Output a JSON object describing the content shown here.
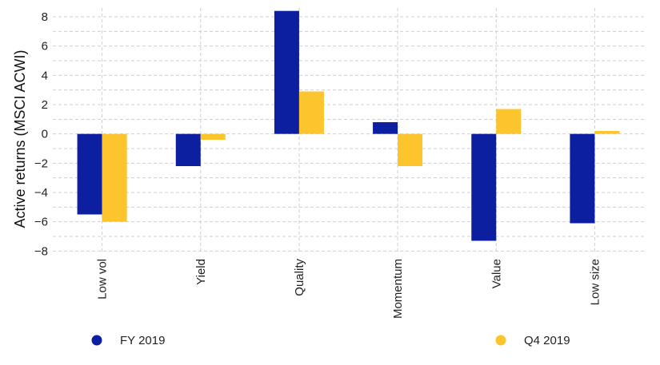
{
  "chart_data": {
    "type": "bar",
    "categories": [
      "Low vol",
      "Yield",
      "Quality",
      "Momentum",
      "Value",
      "Low size"
    ],
    "series": [
      {
        "name": "FY 2019",
        "color": "#0d1fa1",
        "values": [
          -5.5,
          -2.2,
          8.4,
          0.8,
          -7.3,
          -6.1
        ]
      },
      {
        "name": "Q4 2019",
        "color": "#fcc42d",
        "values": [
          -6.0,
          -0.4,
          2.9,
          -2.2,
          1.7,
          0.2
        ]
      }
    ],
    "ylabel": "Active returns (MSCI ACWI)",
    "xlabel": "",
    "ylim": [
      -8.2,
      8.6
    ],
    "yticks": [
      8,
      6,
      4,
      2,
      0,
      -2,
      -4,
      -6,
      -8
    ],
    "ytick_labels": [
      "8",
      "6",
      "4",
      "2",
      "0",
      "−2",
      "−4",
      "−6",
      "−8"
    ],
    "grid": true,
    "legend_position": "bottom"
  }
}
